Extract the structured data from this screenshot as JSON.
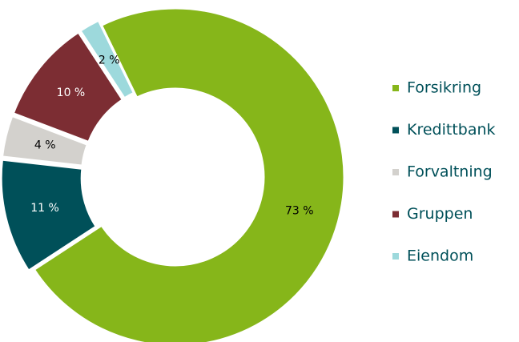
{
  "chart_data": {
    "type": "donut",
    "categories": [
      "Forsikring",
      "Kredittbank",
      "Forvaltning",
      "Gruppen",
      "Eiendom"
    ],
    "values": [
      73,
      11,
      4,
      10,
      2
    ],
    "value_labels": [
      "73 %",
      "11 %",
      "4 %",
      "10 %",
      "2 %"
    ],
    "colors": [
      "#86b61a",
      "#005059",
      "#d3d1cd",
      "#7c2d33",
      "#9dd9dc"
    ],
    "legend": "right"
  }
}
